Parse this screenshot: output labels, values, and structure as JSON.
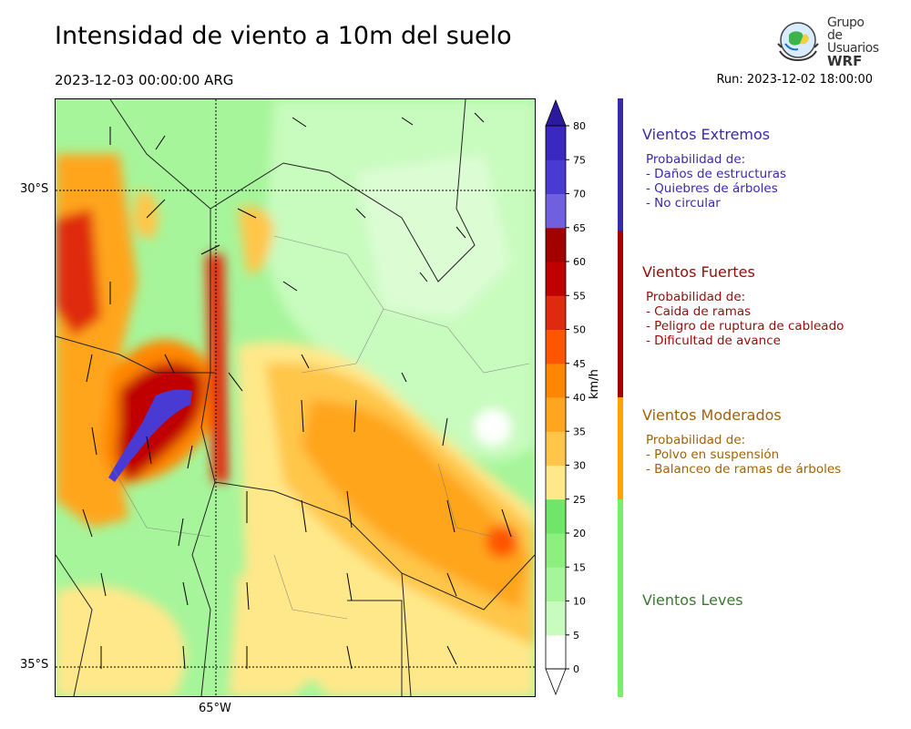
{
  "header": {
    "title": "Intensidad de viento a 10m del suelo",
    "datetime": "2023-12-03 00:00:00 ARG",
    "run": "Run: 2023-12-02 18:00:00"
  },
  "logo": {
    "line1": "Grupo de",
    "line2": "Usuarios",
    "line3": "WRF"
  },
  "map": {
    "lat_labels": [
      "30°S",
      "35°S"
    ],
    "lon_labels": [
      "65°W"
    ]
  },
  "colorbar": {
    "units": "km/h",
    "ticks": [
      "0",
      "5",
      "10",
      "15",
      "20",
      "25",
      "30",
      "35",
      "40",
      "45",
      "50",
      "55",
      "60",
      "65",
      "70",
      "75",
      "80"
    ],
    "colors": [
      "#ffffff",
      "#c8fbbe",
      "#a6f59a",
      "#8cef7e",
      "#6fe66a",
      "#ffe88a",
      "#ffc648",
      "#ffa51e",
      "#ff8600",
      "#ff5500",
      "#e02a10",
      "#c00000",
      "#a30000",
      "#7060e0",
      "#4a3ad4",
      "#3a28c0",
      "#2b1a9e"
    ]
  },
  "categories": [
    {
      "title": "Vientos Extremos",
      "color": "#3a2aa8",
      "bar_color": "#3a2aa8",
      "desc_header": "Probabilidad de:",
      "items": [
        "- Daños de estructuras",
        "- Quiebres de árboles",
        "- No circular"
      ]
    },
    {
      "title": "Vientos Fuertes",
      "color": "#9a0a0a",
      "bar_color": "#a50000",
      "desc_header": "Probabilidad de:",
      "items": [
        "- Caida de ramas",
        "- Peligro de ruptura de cableado",
        "- Dificultad de avance"
      ]
    },
    {
      "title": "Vientos Moderados",
      "color": "#a0620a",
      "bar_color": "#ffa200",
      "desc_header": "Probabilidad de:",
      "items": [
        "- Polvo en suspensión",
        "- Balanceo de ramas de árboles"
      ]
    },
    {
      "title": "Vientos Leves",
      "color": "#3a7a30",
      "bar_color": "#78ee6c",
      "desc_header": "",
      "items": []
    }
  ]
}
